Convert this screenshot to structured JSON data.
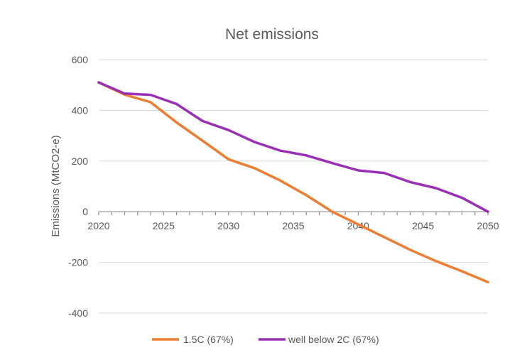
{
  "chart_data": {
    "type": "line",
    "title": "Net emissions",
    "xlabel": "",
    "ylabel": "Emissions (MtCO2-e)",
    "xlim": [
      2020,
      2050
    ],
    "ylim": [
      -400,
      600
    ],
    "y_ticks": [
      -400,
      -200,
      0,
      200,
      400,
      600
    ],
    "x_ticks": [
      2020,
      2025,
      2030,
      2035,
      2040,
      2045,
      2050
    ],
    "grid": true,
    "legend_position": "bottom",
    "x": [
      2020,
      2022,
      2024,
      2026,
      2028,
      2030,
      2032,
      2034,
      2036,
      2038,
      2040,
      2042,
      2044,
      2046,
      2048,
      2050
    ],
    "series": [
      {
        "name": "1.5C (67%)",
        "color": "#ed7d31",
        "values": [
          510,
          462,
          432,
          352,
          280,
          207,
          172,
          123,
          65,
          0,
          -50,
          -100,
          -150,
          -195,
          -235,
          -278
        ]
      },
      {
        "name": "well below 2C (67%)",
        "color": "#9a2fb5",
        "values": [
          510,
          466,
          461,
          425,
          358,
          322,
          275,
          241,
          222,
          192,
          163,
          153,
          117,
          93,
          55,
          0
        ]
      }
    ]
  }
}
